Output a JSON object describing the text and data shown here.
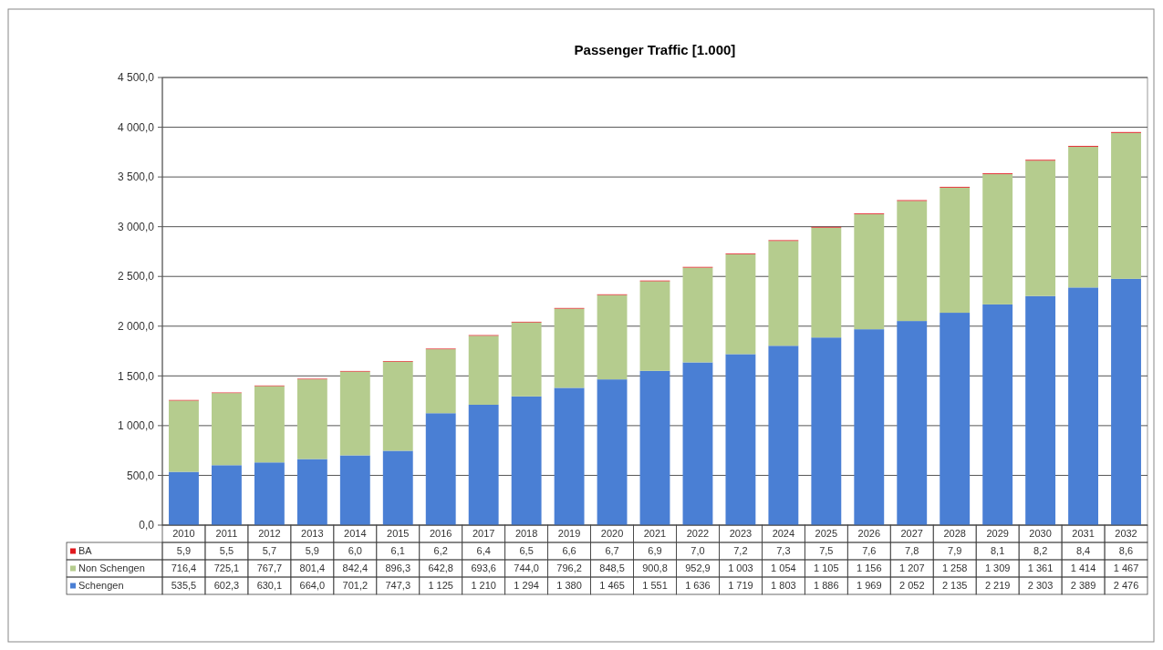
{
  "chart_data": {
    "type": "bar",
    "title": "Passenger Traffic [1.000]",
    "stacked": true,
    "grid": "y",
    "legend": "bottom",
    "data_labels": true,
    "categories": [
      "2010",
      "2011",
      "2012",
      "2013",
      "2014",
      "2015",
      "2016",
      "2017",
      "2018",
      "2019",
      "2020",
      "2021",
      "2022",
      "2023",
      "2024",
      "2025",
      "2026",
      "2027",
      "2028",
      "2029",
      "2030",
      "2031",
      "2032"
    ],
    "ylim": [
      0,
      4500
    ],
    "yticks": [
      {
        "value": 0,
        "label": "0,0"
      },
      {
        "value": 500,
        "label": "500,0"
      },
      {
        "value": 1000,
        "label": "1 000,0"
      },
      {
        "value": 1500,
        "label": "1 500,0"
      },
      {
        "value": 2000,
        "label": "2 000,0"
      },
      {
        "value": 2500,
        "label": "2 500,0"
      },
      {
        "value": 3000,
        "label": "3 000,0"
      },
      {
        "value": 3500,
        "label": "3 500,0"
      },
      {
        "value": 4000,
        "label": "4 000,0"
      },
      {
        "value": 4500,
        "label": "4 500,0"
      }
    ],
    "series": [
      {
        "name": "Schengen",
        "color": "#4a7fd4",
        "values": [
          535.5,
          602.3,
          630.1,
          664.0,
          701.2,
          747.3,
          1125,
          1210,
          1294,
          1380,
          1465,
          1551,
          1636,
          1719,
          1803,
          1886,
          1969,
          2052,
          2135,
          2219,
          2303,
          2389,
          2476
        ],
        "value_labels": [
          "535,5",
          "602,3",
          "630,1",
          "664,0",
          "701,2",
          "747,3",
          "1 125",
          "1 210",
          "1 294",
          "1 380",
          "1 465",
          "1 551",
          "1 636",
          "1 719",
          "1 803",
          "1 886",
          "1 969",
          "2 052",
          "2 135",
          "2 219",
          "2 303",
          "2 389",
          "2 476"
        ]
      },
      {
        "name": "Non Schengen",
        "color": "#b5cc8e",
        "values": [
          716.4,
          725.1,
          767.7,
          801.4,
          842.4,
          896.3,
          642.8,
          693.6,
          744.0,
          796.2,
          848.5,
          900.8,
          952.9,
          1003,
          1054,
          1105,
          1156,
          1207,
          1258,
          1309,
          1361,
          1414,
          1467
        ],
        "value_labels": [
          "716,4",
          "725,1",
          "767,7",
          "801,4",
          "842,4",
          "896,3",
          "642,8",
          "693,6",
          "744,0",
          "796,2",
          "848,5",
          "900,8",
          "952,9",
          "1 003",
          "1 054",
          "1 105",
          "1 156",
          "1 207",
          "1 258",
          "1 309",
          "1 361",
          "1 414",
          "1 467"
        ]
      },
      {
        "name": "BA",
        "color": "#e0191e",
        "values": [
          5.9,
          5.5,
          5.7,
          5.9,
          6.0,
          6.1,
          6.2,
          6.4,
          6.5,
          6.6,
          6.7,
          6.9,
          7.0,
          7.2,
          7.3,
          7.5,
          7.6,
          7.8,
          7.9,
          8.1,
          8.2,
          8.4,
          8.6
        ],
        "value_labels": [
          "5,9",
          "5,5",
          "5,7",
          "5,9",
          "6,0",
          "6,1",
          "6,2",
          "6,4",
          "6,5",
          "6,6",
          "6,7",
          "6,9",
          "7,0",
          "7,2",
          "7,3",
          "7,5",
          "7,6",
          "7,8",
          "7,9",
          "8,1",
          "8,2",
          "8,4",
          "8,6"
        ]
      }
    ]
  }
}
